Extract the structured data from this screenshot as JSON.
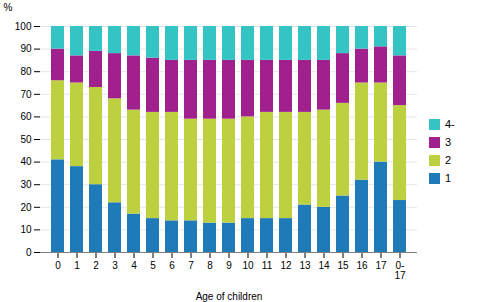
{
  "chart_data": {
    "type": "bar",
    "stacked": true,
    "categories": [
      "0",
      "1",
      "2",
      "3",
      "4",
      "5",
      "6",
      "7",
      "8",
      "9",
      "10",
      "11",
      "12",
      "13",
      "14",
      "15",
      "16",
      "17",
      "0-\n17"
    ],
    "series": [
      {
        "name": "1",
        "color": "#1f7bb8",
        "values": [
          41,
          38,
          30,
          22,
          17,
          15,
          14,
          14,
          13,
          13,
          15,
          15,
          15,
          21,
          20,
          25,
          32,
          40,
          23
        ]
      },
      {
        "name": "2",
        "color": "#bdd040",
        "values": [
          35,
          37,
          43,
          46,
          46,
          47,
          48,
          45,
          46,
          46,
          45,
          47,
          47,
          41,
          43,
          41,
          43,
          35,
          42
        ]
      },
      {
        "name": "3",
        "color": "#a0208e",
        "values": [
          14,
          12,
          16,
          20,
          24,
          24,
          23,
          26,
          26,
          26,
          25,
          23,
          23,
          23,
          22,
          22,
          15,
          16,
          22
        ]
      },
      {
        "name": "4-",
        "color": "#34c4c4",
        "values": [
          10,
          13,
          11,
          12,
          13,
          14,
          15,
          15,
          15,
          15,
          15,
          15,
          15,
          15,
          15,
          12,
          10,
          9,
          13
        ]
      }
    ],
    "xlabel": "Age of children",
    "ylabel": "%",
    "ylim": [
      0,
      100
    ],
    "yticks": [
      0,
      10,
      20,
      30,
      40,
      50,
      60,
      70,
      80,
      90,
      100
    ],
    "grid": true,
    "legend": "right"
  }
}
